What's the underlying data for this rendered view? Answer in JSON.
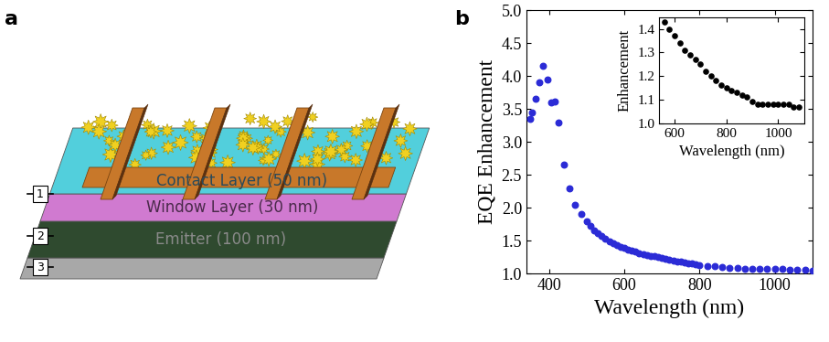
{
  "panel_labels": [
    "a",
    "b"
  ],
  "diagram": {
    "layers": [
      {
        "label": "Contact Layer (50 nm)",
        "color": "#52cfdc"
      },
      {
        "label": "Window Layer (30 nm)",
        "color": "#d07ad0"
      },
      {
        "label": "Emitter (100 nm)",
        "color": "#2f4a2f"
      }
    ],
    "markers": [
      "1",
      "2",
      "3"
    ]
  },
  "chart_data": [
    {
      "type": "scatter",
      "x_label": "Wavelength (nm)",
      "y_label": "EQE Enhancement",
      "x": [
        350,
        355,
        365,
        375,
        385,
        395,
        405,
        415,
        425,
        440,
        455,
        470,
        485,
        500,
        510,
        520,
        530,
        540,
        550,
        560,
        570,
        580,
        590,
        600,
        610,
        620,
        630,
        640,
        650,
        660,
        670,
        680,
        690,
        700,
        710,
        720,
        730,
        740,
        750,
        760,
        770,
        780,
        790,
        800,
        820,
        840,
        860,
        880,
        900,
        920,
        940,
        960,
        980,
        1000,
        1020,
        1040,
        1060,
        1080,
        1100
      ],
      "values": [
        3.35,
        3.45,
        3.65,
        3.9,
        4.15,
        3.95,
        3.6,
        3.62,
        3.3,
        2.65,
        2.3,
        2.05,
        1.9,
        1.8,
        1.72,
        1.66,
        1.61,
        1.57,
        1.53,
        1.49,
        1.46,
        1.43,
        1.41,
        1.39,
        1.37,
        1.35,
        1.33,
        1.31,
        1.3,
        1.28,
        1.27,
        1.26,
        1.25,
        1.24,
        1.22,
        1.21,
        1.2,
        1.19,
        1.18,
        1.17,
        1.16,
        1.15,
        1.14,
        1.13,
        1.12,
        1.11,
        1.1,
        1.09,
        1.08,
        1.07,
        1.07,
        1.07,
        1.07,
        1.07,
        1.07,
        1.06,
        1.06,
        1.06,
        1.05
      ],
      "color": "#2b2bd6",
      "marker": "o",
      "xlim": [
        340,
        1100
      ],
      "xticks": [
        400,
        600,
        800,
        1000
      ],
      "ylim": [
        1.0,
        5.0
      ],
      "yticks": [
        {
          "value": 1.0,
          "label": "1.0"
        },
        {
          "value": 1.5,
          "label": "1.5"
        },
        {
          "value": 2.0,
          "label": "2.0"
        },
        {
          "value": 2.5,
          "label": "2.5"
        },
        {
          "value": 3.0,
          "label": "3.0"
        },
        {
          "value": 3.5,
          "label": "3.5"
        },
        {
          "value": 4.0,
          "label": "4.0"
        },
        {
          "value": 4.5,
          "label": "4.5"
        },
        {
          "value": 5.0,
          "label": "5.0"
        }
      ]
    },
    {
      "type": "scatter",
      "x_label": "Wavelength (nm)",
      "y_label": "Enhancement",
      "x": [
        560,
        580,
        600,
        620,
        640,
        660,
        680,
        700,
        720,
        740,
        760,
        780,
        800,
        820,
        840,
        860,
        880,
        900,
        920,
        940,
        960,
        980,
        1000,
        1020,
        1040,
        1060,
        1080
      ],
      "values": [
        1.43,
        1.4,
        1.37,
        1.34,
        1.31,
        1.29,
        1.27,
        1.25,
        1.22,
        1.2,
        1.18,
        1.16,
        1.15,
        1.14,
        1.13,
        1.12,
        1.11,
        1.09,
        1.08,
        1.08,
        1.08,
        1.08,
        1.08,
        1.08,
        1.08,
        1.07,
        1.07
      ],
      "color": "#000000",
      "marker": "o",
      "xlim": [
        540,
        1100
      ],
      "xticks": [
        600,
        800,
        1000
      ],
      "ylim": [
        1.0,
        1.45
      ],
      "yticks": [
        {
          "value": 1.0,
          "label": "1.0"
        },
        {
          "value": 1.1,
          "label": "1.1"
        },
        {
          "value": 1.2,
          "label": "1.2"
        },
        {
          "value": 1.3,
          "label": "1.3"
        },
        {
          "value": 1.4,
          "label": "1.4"
        }
      ]
    }
  ]
}
